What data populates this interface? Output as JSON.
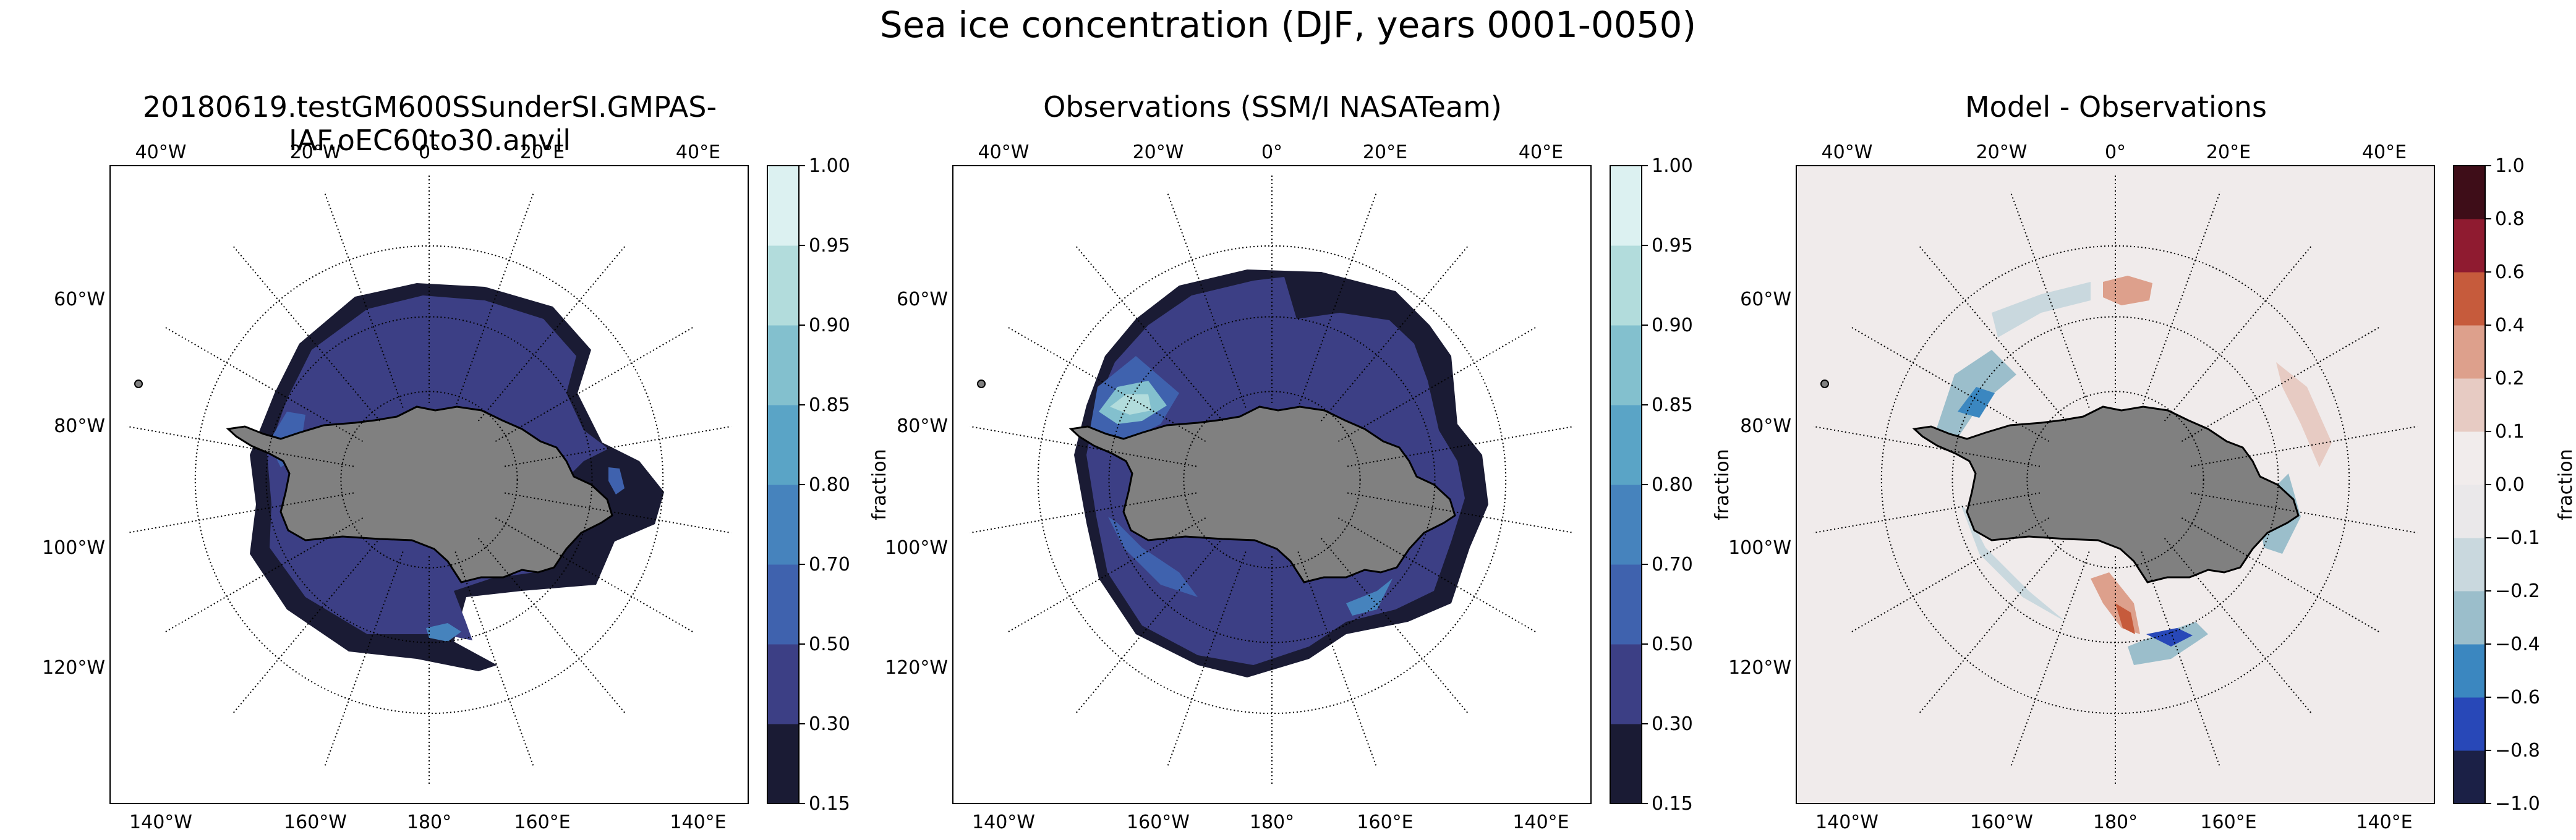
{
  "figure": {
    "suptitle": "Sea ice concentration (DJF, years 0001-0050)"
  },
  "chart_data": [
    {
      "type": "heatmap",
      "projection": "south-polar-stereographic",
      "title": "20180619.testGM600SSunderSI.GMPAS-IAF.oEC60to30.anvil",
      "variable": "Sea ice concentration",
      "lon_tick_labels_top": [
        "40°W",
        "20°W",
        "0°",
        "20°E",
        "40°E"
      ],
      "lon_tick_labels_bottom": [
        "140°W",
        "160°W",
        "180°",
        "160°E",
        "140°E"
      ],
      "lon_tick_labels_left": [
        "60°W",
        "80°W",
        "100°W",
        "120°W"
      ],
      "colorbar": {
        "label": "fraction",
        "levels": [
          0.15,
          0.3,
          0.5,
          0.7,
          0.8,
          0.85,
          0.9,
          0.95,
          1.0
        ],
        "tick_labels": [
          "0.15",
          "0.30",
          "0.50",
          "0.70",
          "0.80",
          "0.85",
          "0.90",
          "0.95",
          "1.00"
        ],
        "colors": [
          "#1a1b34",
          "#3c3f85",
          "#3f62ae",
          "#4683bd",
          "#5aa4c6",
          "#83c0ce",
          "#b2dcdc",
          "#dcf1f1"
        ]
      }
    },
    {
      "type": "heatmap",
      "projection": "south-polar-stereographic",
      "title": "Observations (SSM/I NASATeam)",
      "variable": "Sea ice concentration",
      "lon_tick_labels_top": [
        "40°W",
        "20°W",
        "0°",
        "20°E",
        "40°E"
      ],
      "lon_tick_labels_bottom": [
        "140°W",
        "160°W",
        "180°",
        "160°E",
        "140°E"
      ],
      "lon_tick_labels_left": [
        "60°W",
        "80°W",
        "100°W",
        "120°W"
      ],
      "colorbar": {
        "label": "fraction",
        "levels": [
          0.15,
          0.3,
          0.5,
          0.7,
          0.8,
          0.85,
          0.9,
          0.95,
          1.0
        ],
        "tick_labels": [
          "0.15",
          "0.30",
          "0.50",
          "0.70",
          "0.80",
          "0.85",
          "0.90",
          "0.95",
          "1.00"
        ],
        "colors": [
          "#1a1b34",
          "#3c3f85",
          "#3f62ae",
          "#4683bd",
          "#5aa4c6",
          "#83c0ce",
          "#b2dcdc",
          "#dcf1f1"
        ]
      }
    },
    {
      "type": "heatmap",
      "projection": "south-polar-stereographic",
      "title": "Model - Observations",
      "variable": "Sea ice concentration difference",
      "lon_tick_labels_top": [
        "40°W",
        "20°W",
        "0°",
        "20°E",
        "40°E"
      ],
      "lon_tick_labels_bottom": [
        "140°W",
        "160°W",
        "180°",
        "160°E",
        "140°E"
      ],
      "lon_tick_labels_left": [
        "60°W",
        "80°W",
        "100°W",
        "120°W"
      ],
      "colorbar": {
        "label": "fraction",
        "levels": [
          -1.0,
          -0.8,
          -0.6,
          -0.4,
          -0.2,
          -0.1,
          0.0,
          0.1,
          0.2,
          0.4,
          0.6,
          0.8,
          1.0
        ],
        "tick_labels": [
          "−1.0",
          "−0.8",
          "−0.6",
          "−0.4",
          "−0.2",
          "−0.1",
          "0.0",
          "0.1",
          "0.2",
          "0.4",
          "0.6",
          "0.8",
          "1.0"
        ],
        "colors": [
          "#1b2046",
          "#2848b8",
          "#3b87c0",
          "#9bbecb",
          "#c9d8de",
          "#eae8ea",
          "#f1ecec",
          "#e7cbc3",
          "#dda08c",
          "#c65b3c",
          "#8f1b30",
          "#3e0d18"
        ]
      }
    }
  ],
  "colors": {
    "background": "#ffffff",
    "land": "#808080",
    "ocean_diff": "#f0ebeb",
    "coast": "#000000"
  }
}
